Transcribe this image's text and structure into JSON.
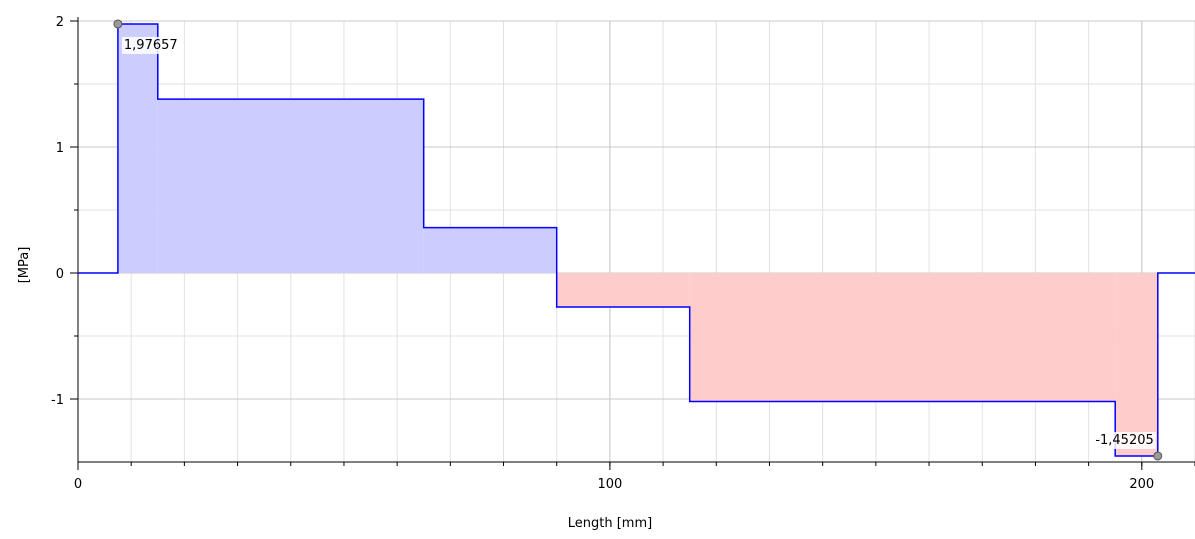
{
  "chart_data": {
    "type": "area",
    "title": "",
    "xlabel": "Length [mm]",
    "ylabel": "[MPa]",
    "xlim": [
      0,
      210
    ],
    "ylim": [
      -1.5,
      2
    ],
    "x_ticks": [
      0,
      100,
      200
    ],
    "x_tick_labels": [
      "0",
      "100",
      "200"
    ],
    "y_ticks": [
      -1,
      0,
      1,
      2
    ],
    "y_tick_labels": [
      "-1",
      "0",
      "1",
      "2"
    ],
    "grid": true,
    "step_profile": [
      {
        "x": 0,
        "y": 0
      },
      {
        "x": 7.5,
        "y": 0
      },
      {
        "x": 7.5,
        "y": 1.97657
      },
      {
        "x": 15,
        "y": 1.97657
      },
      {
        "x": 15,
        "y": 1.38
      },
      {
        "x": 65,
        "y": 1.38
      },
      {
        "x": 65,
        "y": 0.36
      },
      {
        "x": 90,
        "y": 0.36
      },
      {
        "x": 90,
        "y": -0.27
      },
      {
        "x": 115,
        "y": -0.27
      },
      {
        "x": 115,
        "y": -1.02
      },
      {
        "x": 195,
        "y": -1.02
      },
      {
        "x": 195,
        "y": -1.45205
      },
      {
        "x": 203,
        "y": -1.45205
      },
      {
        "x": 203,
        "y": 0
      },
      {
        "x": 210,
        "y": 0
      }
    ],
    "annotations": [
      {
        "text": "1,97657",
        "x": 7.5,
        "y": 1.97657,
        "label_side": "right-below"
      },
      {
        "text": "-1,45205",
        "x": 203,
        "y": -1.45205,
        "label_side": "left-above"
      }
    ],
    "colors": {
      "line": "#0000ff",
      "positive_fill": "#ccccff",
      "negative_fill": "#ffcccc",
      "grid": "#e2e2e2",
      "axis": "#000000",
      "marker": "#9a9a9a"
    }
  }
}
